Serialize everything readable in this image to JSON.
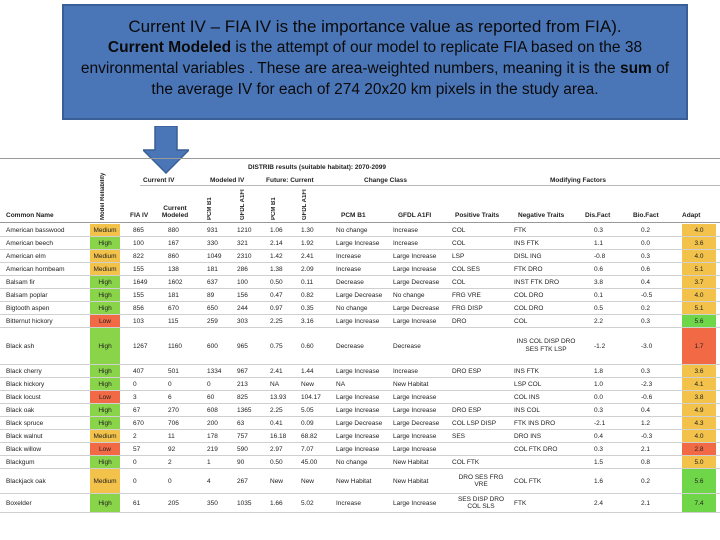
{
  "callout": {
    "line1_title": "Current IV",
    "line1_sep": " – ",
    "line1_bold": "FIA IV",
    "line1_rest": " is the importance value as reported from FIA).",
    "line2_bold": "Current Modeled",
    "line2_rest": " is the attempt of our model to replicate FIA based on the 38 environmental variables . These are area-weighted numbers, meaning it is the ",
    "line2_sum": "sum",
    "line2_end": " of the average IV for each of 274 20x20 km pixels in the study area."
  },
  "table": {
    "top_title": "DISTRIB results (suitable habitat): 2070-2099",
    "groups": {
      "current_iv": "Current IV",
      "modeled_iv": "Modeled IV",
      "future": "Future: Current",
      "change": "Change Class",
      "modifying": "Modifying Factors"
    },
    "headers": {
      "common_name": "Common Name",
      "model_reliability": "Model Reliability",
      "fia_iv": "FIA IV",
      "current_modeled": "Current Modeled",
      "pcm_b1_a": "PCM B1",
      "gfdl_a1fi_a": "GFDL A1FI",
      "pcm_b1_b": "PCM B1",
      "gfdl_a1fi_b": "GFDL A1FI",
      "pcm_b1_c": "PCM B1",
      "gfdl_a1fi_c": "GFDL A1FI",
      "positive": "Positive Traits",
      "negative": "Negative Traits",
      "disfact": "Dis.Fact",
      "biofact": "Bio.Fact",
      "adapt": "Adapt"
    },
    "rows": [
      {
        "name": "American basswood",
        "rel": "Medium",
        "fia": "865",
        "mod": "880",
        "a": "931",
        "b": "1210",
        "c": "1.06",
        "d": "1.30",
        "e": "No change",
        "f": "Increase",
        "pos": "COL",
        "neg": "FTK",
        "dis": "0.3",
        "bio": "0.2",
        "adapt": "4.0"
      },
      {
        "name": "American beech",
        "rel": "High",
        "fia": "100",
        "mod": "167",
        "a": "330",
        "b": "321",
        "c": "2.14",
        "d": "1.92",
        "e": "Large Increase",
        "f": "Increase",
        "pos": "COL",
        "neg": "INS FTK",
        "dis": "1.1",
        "bio": "0.0",
        "adapt": "3.6"
      },
      {
        "name": "American elm",
        "rel": "Medium",
        "fia": "822",
        "mod": "860",
        "a": "1049",
        "b": "2310",
        "c": "1.42",
        "d": "2.41",
        "e": "Increase",
        "f": "Large Increase",
        "pos": "LSP",
        "neg": "DISL ING",
        "dis": "-0.8",
        "bio": "0.3",
        "adapt": "4.0"
      },
      {
        "name": "American hornbeam",
        "rel": "Medium",
        "fia": "155",
        "mod": "138",
        "a": "181",
        "b": "286",
        "c": "1.38",
        "d": "2.09",
        "e": "Increase",
        "f": "Large Increase",
        "pos": "COL SES",
        "neg": "FTK DRO",
        "dis": "0.6",
        "bio": "0.6",
        "adapt": "5.1"
      },
      {
        "name": "Balsam fir",
        "rel": "High",
        "fia": "1649",
        "mod": "1602",
        "a": "637",
        "b": "100",
        "c": "0.50",
        "d": "0.11",
        "e": "Decrease",
        "f": "Large Decrease",
        "pos": "COL",
        "neg": "INST FTK DRO",
        "dis": "3.8",
        "bio": "0.4",
        "adapt": "3.7"
      },
      {
        "name": "Balsam poplar",
        "rel": "High",
        "fia": "155",
        "mod": "181",
        "a": "89",
        "b": "156",
        "c": "0.47",
        "d": "0.82",
        "e": "Large Decrease",
        "f": "No change",
        "pos": "FRG VRE",
        "neg": "COL DRO",
        "dis": "0.1",
        "bio": "-0.5",
        "adapt": "4.0"
      },
      {
        "name": "Bigtooth aspen",
        "rel": "High",
        "fia": "856",
        "mod": "670",
        "a": "650",
        "b": "244",
        "c": "0.97",
        "d": "0.35",
        "e": "No change",
        "f": "Large Decrease",
        "pos": "FRG DISP",
        "neg": "COL DRO",
        "dis": "0.5",
        "bio": "0.2",
        "adapt": "5.1"
      },
      {
        "name": "Bitternut hickory",
        "rel": "Low",
        "fia": "103",
        "mod": "115",
        "a": "259",
        "b": "303",
        "c": "2.25",
        "d": "3.16",
        "e": "Large Increase",
        "f": "Large Increase",
        "pos": "DRO",
        "neg": "COL",
        "dis": "2.2",
        "bio": "0.3",
        "adapt": "5.6"
      },
      {
        "name": "Black ash",
        "rel": "High",
        "fia": "1267",
        "mod": "1160",
        "a": "600",
        "b": "965",
        "c": "0.75",
        "d": "0.60",
        "e": "Decrease",
        "f": "Decrease",
        "pos": "",
        "neg": "INS COL DISP DRO SES FTK LSP",
        "dis": "-1.2",
        "bio": "-3.0",
        "adapt": "1.7"
      },
      {
        "name": "Black cherry",
        "rel": "High",
        "fia": "407",
        "mod": "501",
        "a": "1334",
        "b": "967",
        "c": "2.41",
        "d": "1.44",
        "e": "Large Increase",
        "f": "Increase",
        "pos": "DRO ESP",
        "neg": "INS FTK",
        "dis": "1.8",
        "bio": "0.3",
        "adapt": "3.6"
      },
      {
        "name": "Black hickory",
        "rel": "High",
        "fia": "0",
        "mod": "0",
        "a": "0",
        "b": "213",
        "c": "NA",
        "d": "New",
        "e": "NA",
        "f": "New Habitat",
        "pos": "",
        "neg": "LSP COL",
        "dis": "1.0",
        "bio": "-2.3",
        "adapt": "4.1"
      },
      {
        "name": "Black locust",
        "rel": "Low",
        "fia": "3",
        "mod": "6",
        "a": "60",
        "b": "825",
        "c": "13.93",
        "d": "104.17",
        "e": "Large Increase",
        "f": "Large Increase",
        "pos": "",
        "neg": "COL INS",
        "dis": "0.0",
        "bio": "-0.6",
        "adapt": "3.8"
      },
      {
        "name": "Black oak",
        "rel": "High",
        "fia": "67",
        "mod": "270",
        "a": "608",
        "b": "1365",
        "c": "2.25",
        "d": "5.05",
        "e": "Large Increase",
        "f": "Large Increase",
        "pos": "DRO ESP",
        "neg": "INS COL",
        "dis": "0.3",
        "bio": "0.4",
        "adapt": "4.9"
      },
      {
        "name": "Black spruce",
        "rel": "High",
        "fia": "670",
        "mod": "706",
        "a": "200",
        "b": "63",
        "c": "0.41",
        "d": "0.09",
        "e": "Large Decrease",
        "f": "Large Decrease",
        "pos": "COL LSP DISP",
        "neg": "FTK INS DRO",
        "dis": "-2.1",
        "bio": "1.2",
        "adapt": "4.3"
      },
      {
        "name": "Black walnut",
        "rel": "Medium",
        "fia": "2",
        "mod": "11",
        "a": "178",
        "b": "757",
        "c": "16.18",
        "d": "68.82",
        "e": "Large Increase",
        "f": "Large Increase",
        "pos": "SES",
        "neg": "DRO INS",
        "dis": "0.4",
        "bio": "-0.3",
        "adapt": "4.0"
      },
      {
        "name": "Black willow",
        "rel": "Low",
        "fia": "57",
        "mod": "92",
        "a": "219",
        "b": "590",
        "c": "2.97",
        "d": "7.07",
        "e": "Large Increase",
        "f": "Large Increase",
        "pos": "",
        "neg": "COL FTK DRO",
        "dis": "0.3",
        "bio": "2.1",
        "adapt": "2.8"
      },
      {
        "name": "Blackgum",
        "rel": "High",
        "fia": "0",
        "mod": "2",
        "a": "1",
        "b": "90",
        "c": "0.50",
        "d": "45.00",
        "e": "No change",
        "f": "New Habitat",
        "pos": "COL FTK",
        "neg": "",
        "dis": "1.5",
        "bio": "0.8",
        "adapt": "5.0"
      },
      {
        "name": "Blackjack oak",
        "rel": "Medium",
        "fia": "0",
        "mod": "0",
        "a": "4",
        "b": "267",
        "c": "New",
        "d": "New",
        "e": "New Habitat",
        "f": "New Habitat",
        "pos": "DRO SES FRG VRE",
        "neg": "COL FTK",
        "dis": "1.6",
        "bio": "0.2",
        "adapt": "5.6"
      },
      {
        "name": "Boxelder",
        "rel": "High",
        "fia": "61",
        "mod": "205",
        "a": "350",
        "b": "1035",
        "c": "1.66",
        "d": "5.02",
        "e": "Increase",
        "f": "Large Increase",
        "pos": "SES DISP DRO COL SLS",
        "neg": "FTK",
        "dis": "2.4",
        "bio": "2.1",
        "adapt": "7.4"
      }
    ]
  }
}
